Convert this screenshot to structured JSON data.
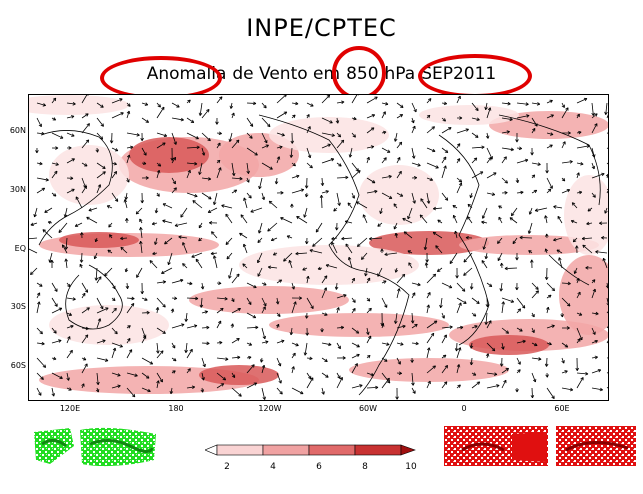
{
  "header": {
    "title": "INPE/CPTEC",
    "subtitle_parts": [
      "Anomalia",
      "de Vento em",
      "850",
      "hPa",
      "SEP2011"
    ]
  },
  "map": {
    "lat_labels": [
      "60N",
      "30N",
      "EQ",
      "30S",
      "60S"
    ],
    "lon_labels": [
      "120E",
      "180",
      "120W",
      "60W",
      "0",
      "60E"
    ]
  },
  "colorbar": {
    "labels": [
      "2",
      "4",
      "6",
      "8",
      "10"
    ],
    "colors": [
      "#ffffff",
      "#f9d3d3",
      "#f0a2a2",
      "#e06a6a",
      "#c83232",
      "#a01010"
    ]
  },
  "colors": {
    "highlight": "#e00000",
    "anomaly_light": "#fbe3e3",
    "anomaly_mid": "#f2a6a6",
    "anomaly_dark": "#d85858",
    "left_badge": "#22dd22",
    "right_badge": "#e01010"
  }
}
